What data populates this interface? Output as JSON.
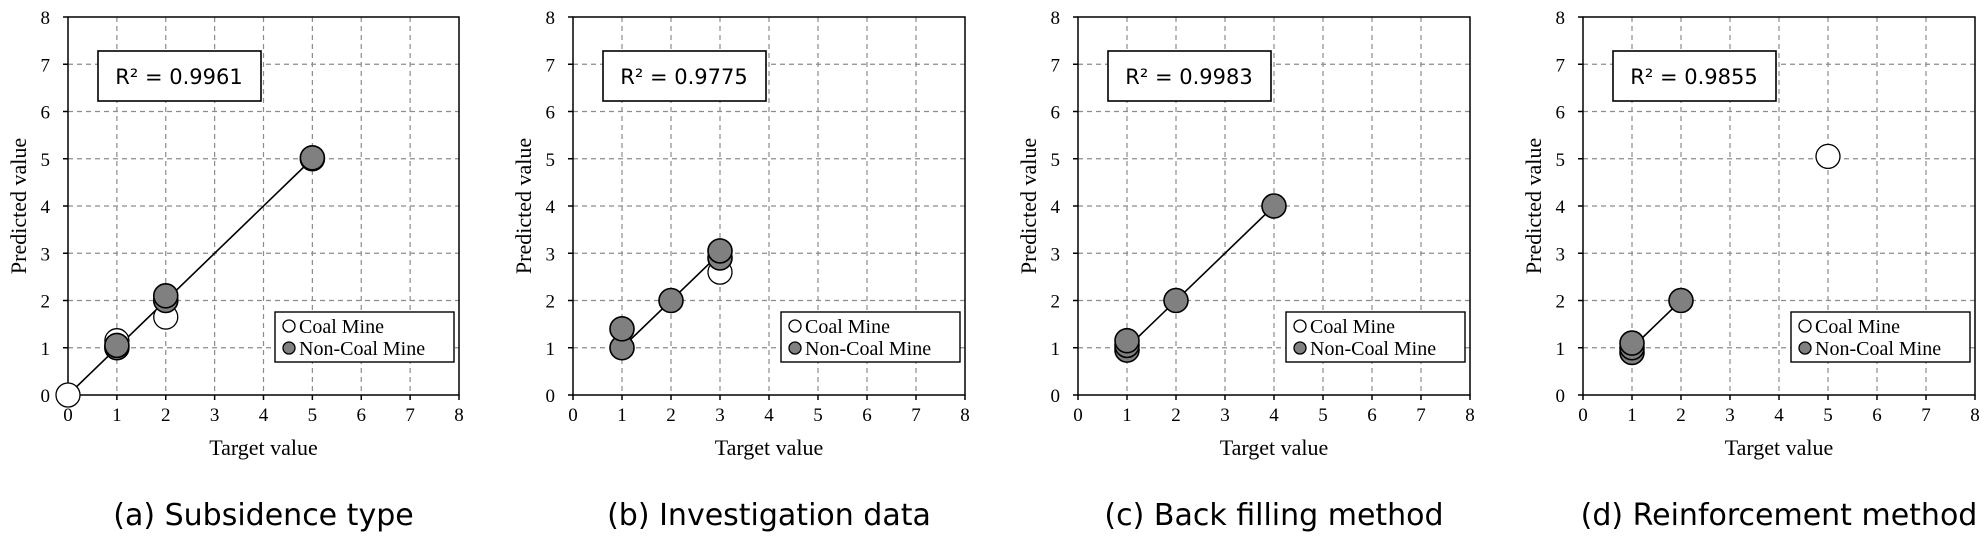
{
  "chart_data": [
    {
      "type": "scatter",
      "caption": "(a) Subsidence type",
      "xlabel": "Target value",
      "ylabel": "Predicted value",
      "xlim": [
        0,
        8
      ],
      "ylim": [
        0,
        8
      ],
      "xticks": [
        "0",
        "1",
        "2",
        "3",
        "4",
        "5",
        "6",
        "7",
        "8"
      ],
      "yticks": [
        "0",
        "1",
        "2",
        "3",
        "4",
        "5",
        "6",
        "7",
        "8"
      ],
      "grid": true,
      "annotation": "R² = 0.9961",
      "legend_position": "bottom-right",
      "fit_line": [
        [
          0,
          0
        ],
        [
          5,
          5
        ]
      ],
      "series": [
        {
          "name": "Coal Mine",
          "marker": "open",
          "points": [
            [
              0,
              0
            ],
            [
              1,
              1.15
            ],
            [
              2,
              1.65
            ]
          ]
        },
        {
          "name": "Non-Coal Mine",
          "marker": "filled",
          "points": [
            [
              1,
              1.0
            ],
            [
              1,
              1.05
            ],
            [
              2,
              2.0
            ],
            [
              2,
              2.1
            ],
            [
              5,
              5.0
            ],
            [
              5,
              5.02
            ]
          ]
        }
      ]
    },
    {
      "type": "scatter",
      "caption": "(b) Investigation data",
      "xlabel": "Target value",
      "ylabel": "Predicted value",
      "xlim": [
        0,
        8
      ],
      "ylim": [
        0,
        8
      ],
      "xticks": [
        "0",
        "1",
        "2",
        "3",
        "4",
        "5",
        "6",
        "7",
        "8"
      ],
      "yticks": [
        "0",
        "1",
        "2",
        "3",
        "4",
        "5",
        "6",
        "7",
        "8"
      ],
      "grid": true,
      "annotation": "R² = 0.9775",
      "legend_position": "bottom-right",
      "fit_line": [
        [
          1,
          1
        ],
        [
          3,
          3
        ]
      ],
      "series": [
        {
          "name": "Coal Mine",
          "marker": "open",
          "points": [
            [
              3,
              2.6
            ]
          ]
        },
        {
          "name": "Non-Coal Mine",
          "marker": "filled",
          "points": [
            [
              1,
              1.0
            ],
            [
              1,
              1.4
            ],
            [
              2,
              2.0
            ],
            [
              3,
              2.9
            ],
            [
              3,
              3.05
            ]
          ]
        }
      ]
    },
    {
      "type": "scatter",
      "caption": "(c) Back filling method",
      "xlabel": "Target value",
      "ylabel": "Predicted value",
      "xlim": [
        0,
        8
      ],
      "ylim": [
        0,
        8
      ],
      "xticks": [
        "0",
        "1",
        "2",
        "3",
        "4",
        "5",
        "6",
        "7",
        "8"
      ],
      "yticks": [
        "0",
        "1",
        "2",
        "3",
        "4",
        "5",
        "6",
        "7",
        "8"
      ],
      "grid": true,
      "annotation": "R² = 0.9983",
      "legend_position": "bottom-right",
      "fit_line": [
        [
          1,
          1
        ],
        [
          4,
          4
        ]
      ],
      "series": [
        {
          "name": "Coal Mine",
          "marker": "open",
          "points": []
        },
        {
          "name": "Non-Coal Mine",
          "marker": "filled",
          "points": [
            [
              1,
              0.95
            ],
            [
              1,
              1.05
            ],
            [
              1,
              1.15
            ],
            [
              2,
              2.0
            ],
            [
              4,
              4.0
            ]
          ]
        }
      ]
    },
    {
      "type": "scatter",
      "caption": "(d) Reinforcement method",
      "xlabel": "Target value",
      "ylabel": "Predicted value",
      "xlim": [
        0,
        8
      ],
      "ylim": [
        0,
        8
      ],
      "xticks": [
        "0",
        "1",
        "2",
        "3",
        "4",
        "5",
        "6",
        "7",
        "8"
      ],
      "yticks": [
        "0",
        "1",
        "2",
        "3",
        "4",
        "5",
        "6",
        "7",
        "8"
      ],
      "grid": true,
      "annotation": "R² = 0.9855",
      "legend_position": "bottom-right",
      "fit_line": [
        [
          1,
          1
        ],
        [
          2,
          2
        ]
      ],
      "series": [
        {
          "name": "Coal Mine",
          "marker": "open",
          "points": [
            [
              5,
              5.05
            ]
          ]
        },
        {
          "name": "Non-Coal Mine",
          "marker": "filled",
          "points": [
            [
              1,
              0.9
            ],
            [
              1,
              1.0
            ],
            [
              1,
              1.1
            ],
            [
              2,
              2.0
            ]
          ]
        }
      ]
    }
  ]
}
